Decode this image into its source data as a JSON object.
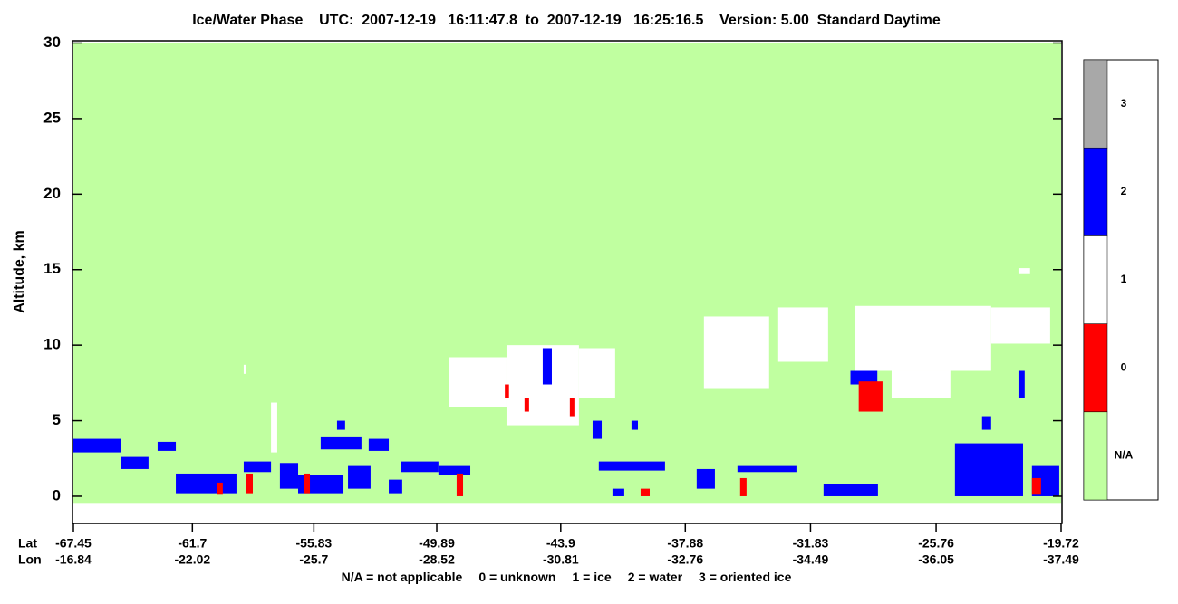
{
  "chart_data": {
    "type": "curtain",
    "title": "Ice/Water Phase    UTC:  2007-12-19   16:11:47.8  to  2007-12-19   16:25:16.5    Version: 5.00  Standard Daytime",
    "ylabel": "Altitude, km",
    "ylim": [
      -1.8,
      30
    ],
    "yticks": [
      0,
      5,
      10,
      15,
      20,
      25,
      30
    ],
    "xlim": [
      -67.45,
      -19.72
    ],
    "x_row_labels": [
      "Lat",
      "Lon"
    ],
    "xticks": [
      -67.45,
      -61.7,
      -55.83,
      -49.89,
      -43.9,
      -37.88,
      -31.83,
      -25.76,
      -19.72
    ],
    "lon_ticks": [
      -16.84,
      -22.02,
      -25.7,
      -28.52,
      -30.81,
      -32.76,
      -34.49,
      -36.05,
      -37.49
    ],
    "legend_text": [
      "N/A = not applicable",
      "0 = unknown",
      "1 = ice",
      "2 = water",
      "3 = oriented ice"
    ],
    "colorbar": {
      "categories": [
        "N/A",
        "0",
        "1",
        "2",
        "3"
      ],
      "colors": [
        "#c0ffa0",
        "#ff0000",
        "#ffffff",
        "#0000ff",
        "#a8a8a8"
      ]
    },
    "segments": [
      {
        "lat": [
          -67.45,
          -19.72
        ],
        "alt": [
          -0.5,
          30
        ],
        "class": "N/A"
      },
      {
        "lat": [
          -57.9,
          -57.6
        ],
        "alt": [
          2.9,
          6.2
        ],
        "class": "1"
      },
      {
        "lat": [
          -59.22,
          -59.1
        ],
        "alt": [
          8.1,
          8.7
        ],
        "class": "1"
      },
      {
        "lat": [
          -49.28,
          -46.52
        ],
        "alt": [
          5.9,
          9.2
        ],
        "class": "1"
      },
      {
        "lat": [
          -46.52,
          -43.02
        ],
        "alt": [
          4.7,
          10.0
        ],
        "class": "1"
      },
      {
        "lat": [
          -43.02,
          -41.27
        ],
        "alt": [
          6.5,
          9.8
        ],
        "class": "1"
      },
      {
        "lat": [
          -36.98,
          -33.83
        ],
        "alt": [
          7.1,
          11.9
        ],
        "class": "1"
      },
      {
        "lat": [
          -33.39,
          -30.98
        ],
        "alt": [
          8.9,
          12.5
        ],
        "class": "1"
      },
      {
        "lat": [
          -29.67,
          -23.1
        ],
        "alt": [
          8.3,
          12.6
        ],
        "class": "1"
      },
      {
        "lat": [
          -27.91,
          -25.07
        ],
        "alt": [
          6.5,
          8.3
        ],
        "class": "1"
      },
      {
        "lat": [
          -23.1,
          -20.25
        ],
        "alt": [
          10.1,
          12.5
        ],
        "class": "1"
      },
      {
        "lat": [
          -21.78,
          -21.22
        ],
        "alt": [
          14.7,
          15.1
        ],
        "class": "1"
      },
      {
        "lat": [
          -67.45,
          -65.13
        ],
        "alt": [
          2.9,
          3.8
        ],
        "class": "2"
      },
      {
        "lat": [
          -65.13,
          -63.82
        ],
        "alt": [
          1.8,
          2.6
        ],
        "class": "2"
      },
      {
        "lat": [
          -63.38,
          -62.5
        ],
        "alt": [
          3.0,
          3.6
        ],
        "class": "2"
      },
      {
        "lat": [
          -62.5,
          -59.57
        ],
        "alt": [
          0.2,
          1.5
        ],
        "class": "2"
      },
      {
        "lat": [
          -59.22,
          -57.9
        ],
        "alt": [
          1.6,
          2.3
        ],
        "class": "2"
      },
      {
        "lat": [
          -57.47,
          -56.59
        ],
        "alt": [
          0.5,
          2.2
        ],
        "class": "2"
      },
      {
        "lat": [
          -56.59,
          -54.4
        ],
        "alt": [
          0.2,
          1.4
        ],
        "class": "2"
      },
      {
        "lat": [
          -55.5,
          -53.53
        ],
        "alt": [
          3.1,
          3.9
        ],
        "class": "2"
      },
      {
        "lat": [
          -54.71,
          -54.32
        ],
        "alt": [
          4.4,
          5.0
        ],
        "class": "2"
      },
      {
        "lat": [
          -54.18,
          -53.09
        ],
        "alt": [
          0.5,
          2.0
        ],
        "class": "2"
      },
      {
        "lat": [
          -53.18,
          -52.21
        ],
        "alt": [
          3.0,
          3.8
        ],
        "class": "2"
      },
      {
        "lat": [
          -52.21,
          -51.56
        ],
        "alt": [
          0.2,
          1.1
        ],
        "class": "2"
      },
      {
        "lat": [
          -51.64,
          -49.81
        ],
        "alt": [
          1.6,
          2.3
        ],
        "class": "2"
      },
      {
        "lat": [
          -49.81,
          -48.27
        ],
        "alt": [
          1.4,
          2.0
        ],
        "class": "2"
      },
      {
        "lat": [
          -44.77,
          -44.33
        ],
        "alt": [
          7.4,
          9.8
        ],
        "class": "2"
      },
      {
        "lat": [
          -42.36,
          -41.92
        ],
        "alt": [
          3.8,
          5.0
        ],
        "class": "2"
      },
      {
        "lat": [
          -40.48,
          -40.17
        ],
        "alt": [
          4.4,
          5.0
        ],
        "class": "2"
      },
      {
        "lat": [
          -42.06,
          -38.86
        ],
        "alt": [
          1.7,
          2.3
        ],
        "class": "2"
      },
      {
        "lat": [
          -41.4,
          -40.83
        ],
        "alt": [
          0,
          0.5
        ],
        "class": "2"
      },
      {
        "lat": [
          -37.33,
          -36.45
        ],
        "alt": [
          0.5,
          1.8
        ],
        "class": "2"
      },
      {
        "lat": [
          -35.36,
          -32.51
        ],
        "alt": [
          1.6,
          2.0
        ],
        "class": "2"
      },
      {
        "lat": [
          -31.2,
          -28.57
        ],
        "alt": [
          0,
          0.8
        ],
        "class": "2"
      },
      {
        "lat": [
          -29.9,
          -28.6
        ],
        "alt": [
          7.4,
          8.3
        ],
        "class": "2"
      },
      {
        "lat": [
          -24.85,
          -21.56
        ],
        "alt": [
          0,
          3.5
        ],
        "class": "2"
      },
      {
        "lat": [
          -23.54,
          -23.1
        ],
        "alt": [
          4.4,
          5.3
        ],
        "class": "2"
      },
      {
        "lat": [
          -21.78,
          -21.48
        ],
        "alt": [
          6.5,
          8.3
        ],
        "class": "2"
      },
      {
        "lat": [
          -21.13,
          -19.81
        ],
        "alt": [
          0,
          2.0
        ],
        "class": "2"
      },
      {
        "lat": [
          -60.53,
          -60.23
        ],
        "alt": [
          0.1,
          0.9
        ],
        "class": "0"
      },
      {
        "lat": [
          -59.13,
          -58.78
        ],
        "alt": [
          0.2,
          1.5
        ],
        "class": "0"
      },
      {
        "lat": [
          -56.29,
          -56.02
        ],
        "alt": [
          0.2,
          1.5
        ],
        "class": "0"
      },
      {
        "lat": [
          -48.93,
          -48.62
        ],
        "alt": [
          0,
          1.5
        ],
        "class": "0"
      },
      {
        "lat": [
          -45.65,
          -45.43
        ],
        "alt": [
          5.6,
          6.5
        ],
        "class": "0"
      },
      {
        "lat": [
          -43.46,
          -43.24
        ],
        "alt": [
          5.3,
          6.5
        ],
        "class": "0"
      },
      {
        "lat": [
          -46.6,
          -46.4
        ],
        "alt": [
          6.5,
          7.4
        ],
        "class": "0"
      },
      {
        "lat": [
          -40.04,
          -39.6
        ],
        "alt": [
          0,
          0.5
        ],
        "class": "0"
      },
      {
        "lat": [
          -35.23,
          -34.92
        ],
        "alt": [
          0,
          1.2
        ],
        "class": "0"
      },
      {
        "lat": [
          -29.5,
          -28.35
        ],
        "alt": [
          5.6,
          7.6
        ],
        "class": "0"
      },
      {
        "lat": [
          -21.13,
          -20.69
        ],
        "alt": [
          0.1,
          1.2
        ],
        "class": "0"
      }
    ]
  }
}
